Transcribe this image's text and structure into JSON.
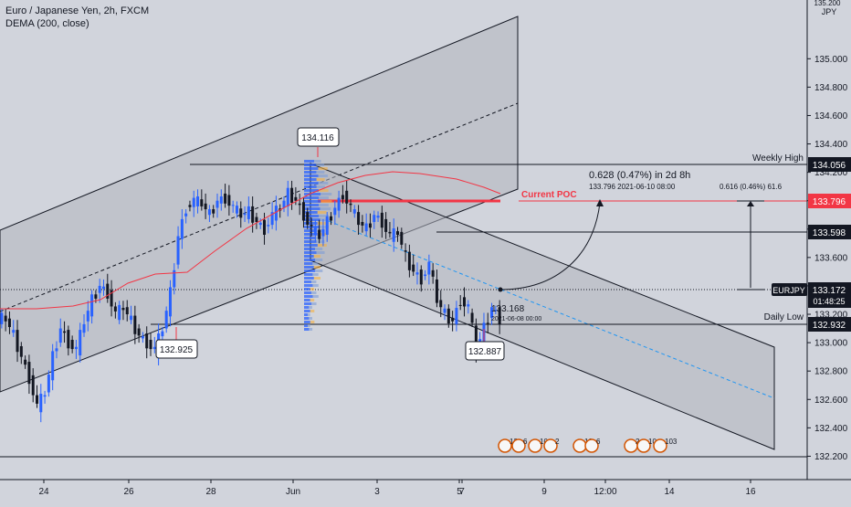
{
  "header": {
    "symbol_line": "Euro / Japanese Yen, 2h, FXCM",
    "indicator_line": "DEMA (200, close)"
  },
  "price_axis": {
    "currency": "JPY",
    "ticks": [
      132.2,
      132.4,
      132.6,
      132.8,
      133.0,
      133.2,
      133.4,
      133.6,
      133.8,
      134.0,
      134.2,
      134.4,
      134.6,
      134.8,
      135.0
    ],
    "top_partial": "135.200"
  },
  "time_axis": {
    "labels": [
      "24",
      "26",
      "28",
      "Jun",
      "3",
      "5",
      "7",
      "9",
      "12:00",
      "14",
      "16"
    ]
  },
  "markers": {
    "current_price": "133.172",
    "symbol": "EURJPY",
    "countdown": "01:48:25",
    "weekly_high": {
      "label": "Weekly High",
      "value": "134.056"
    },
    "resistance": {
      "value": "133.598"
    },
    "daily_low": {
      "label": "Daily Low",
      "value": "132.932"
    },
    "poc": {
      "label": "Current POC",
      "value": "133.796"
    }
  },
  "callouts": {
    "high": "134.116",
    "low_left": "132.925",
    "low_right": "132.887",
    "last_price": "133.168",
    "last_time": "2021-06-08 00:00"
  },
  "measure": {
    "headline": "0.628 (0.47%) in 2d 8h",
    "detail": "133.796    2021-06-10  08:00",
    "right_detail": "0.616 (0.46%) 61.6"
  },
  "events": [
    "13",
    "6",
    "10",
    "2",
    "10",
    "6",
    "2",
    "10",
    "103"
  ],
  "colors": {
    "background": "#d1d4dc",
    "up": "#2962ff",
    "down": "#131722",
    "dema": "#f23645",
    "poc": "#f23645",
    "channel_fill": "#b2b5be",
    "volume_profile": "#2962ff",
    "projection": "#2196f3"
  },
  "chart_data": {
    "type": "candlestick",
    "symbol": "EURJPY",
    "timeframe": "2h",
    "ylim": [
      132.0,
      135.2
    ],
    "y_ticks": [
      132.2,
      132.4,
      132.6,
      132.8,
      133.0,
      133.2,
      133.4,
      133.6,
      133.8,
      134.0,
      134.2,
      134.4,
      134.6,
      134.8,
      135.0
    ],
    "x_tick_labels": [
      "24",
      "26",
      "28",
      "Jun",
      "3",
      "5",
      "7",
      "9",
      "12:00",
      "14",
      "16"
    ],
    "levels": [
      {
        "name": "Weekly High",
        "value": 134.056
      },
      {
        "name": "Current POC",
        "value": 133.796
      },
      {
        "name": "",
        "value": 133.598
      },
      {
        "name": "",
        "value": 133.172
      },
      {
        "name": "Daily Low",
        "value": 132.932
      }
    ],
    "annotated_points": [
      {
        "label": "134.116",
        "value": 134.116
      },
      {
        "label": "132.925",
        "value": 132.925
      },
      {
        "label": "132.887",
        "value": 132.887
      },
      {
        "label": "133.168",
        "value": 133.168
      }
    ],
    "close_path": [
      133.17,
      133.05,
      132.9,
      132.75,
      132.55,
      132.65,
      132.9,
      133.1,
      133.0,
      132.95,
      133.15,
      133.3,
      133.4,
      133.35,
      133.2,
      133.25,
      133.15,
      133.05,
      133.0,
      132.95,
      133.1,
      133.35,
      133.75,
      133.95,
      134.0,
      133.98,
      133.9,
      134.0,
      134.02,
      133.95,
      133.9,
      133.92,
      133.85,
      133.8,
      133.9,
      133.95,
      134.05,
      134.0,
      133.9,
      133.8,
      133.75,
      133.85,
      133.95,
      134.05,
      133.95,
      133.85,
      133.8,
      133.9,
      133.85,
      133.75,
      133.78,
      133.6,
      133.5,
      133.45,
      133.55,
      133.3,
      133.2,
      133.15,
      133.3,
      133.25,
      132.95,
      133.1,
      133.25,
      133.17
    ]
  }
}
